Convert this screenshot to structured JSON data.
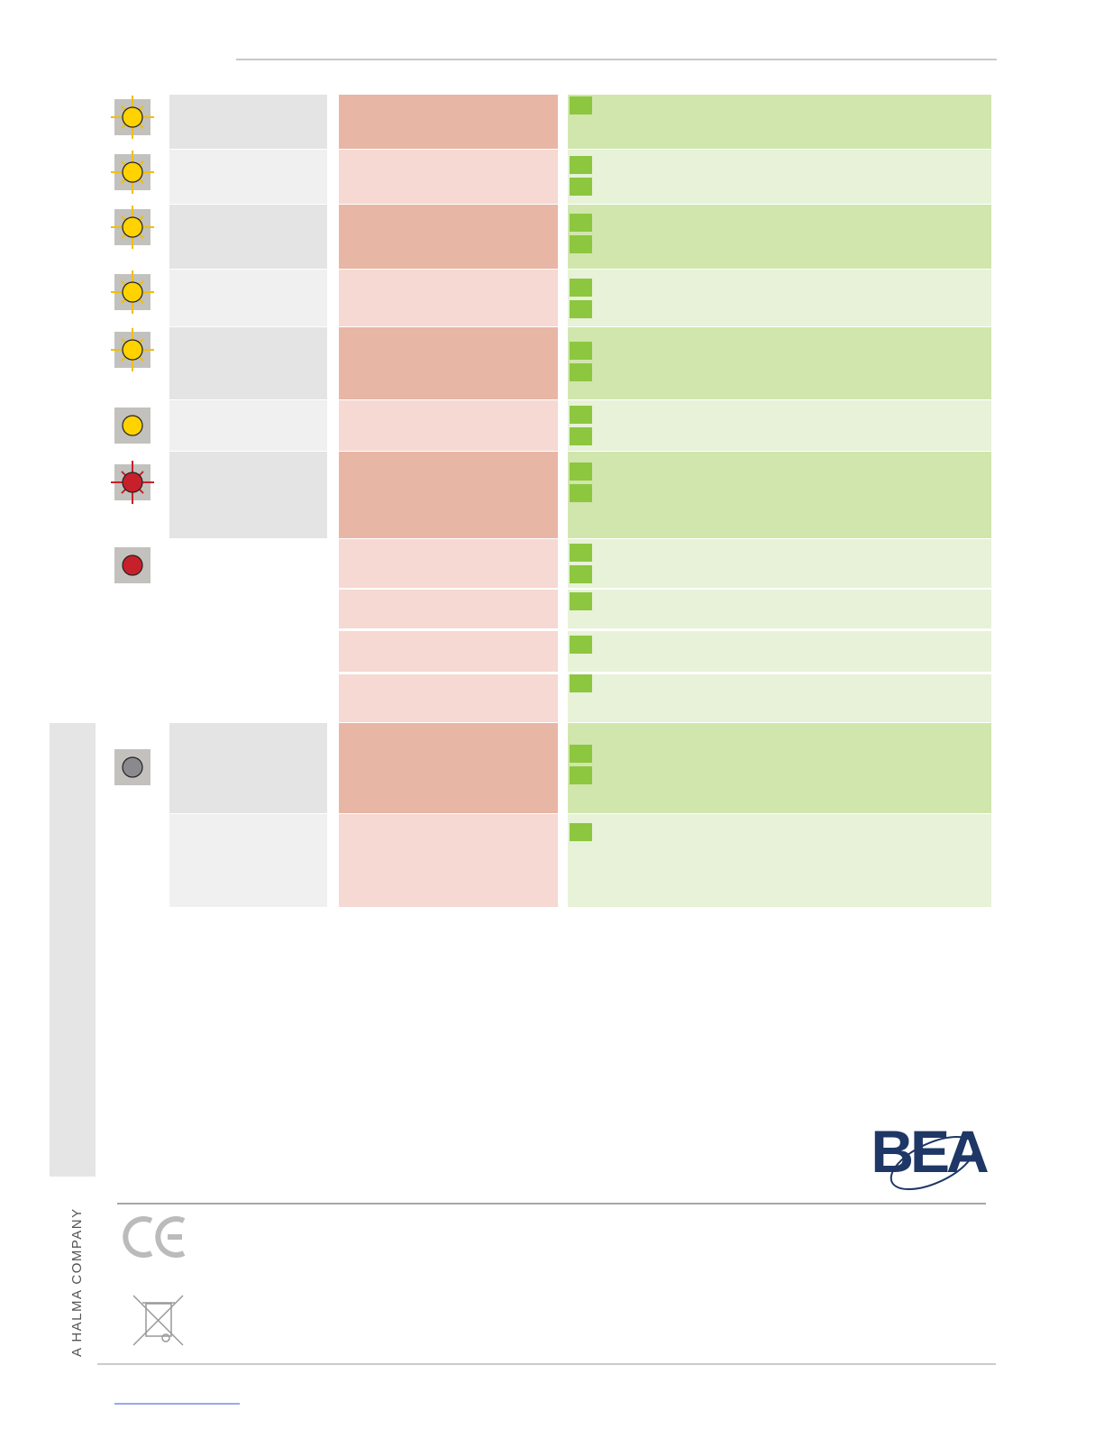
{
  "sidebar": {
    "company": "A HALMA COMPANY"
  },
  "logo": {
    "text": "BEA"
  }
}
